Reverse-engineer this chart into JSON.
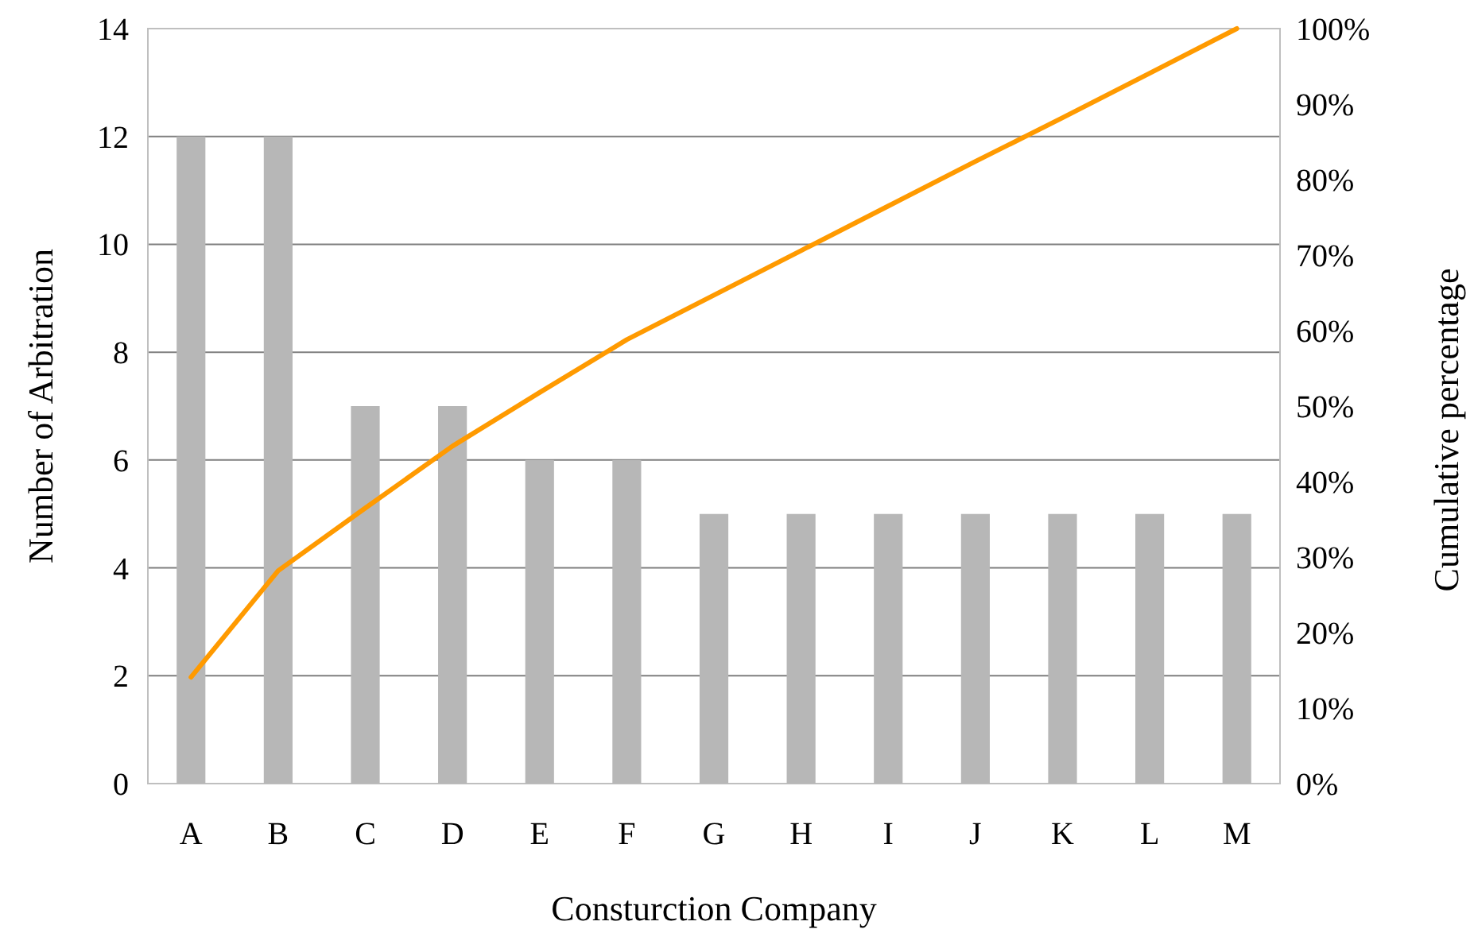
{
  "chart_data": {
    "type": "bar",
    "xlabel": "Consturction Company",
    "ylabel": "Number of Arbitration",
    "y2label": "Cumulative percentage",
    "categories": [
      "A",
      "B",
      "C",
      "D",
      "E",
      "F",
      "G",
      "H",
      "I",
      "J",
      "K",
      "L",
      "M"
    ],
    "series": [
      {
        "color": "#b7b7b7",
        "values": [
          12,
          12,
          7,
          7,
          6,
          6,
          5,
          5,
          5,
          5,
          5,
          5,
          5
        ]
      },
      {
        "type": "line",
        "axis": "y2",
        "color": "#ff9a00",
        "values": [
          14.1,
          28.2,
          36.5,
          44.7,
          51.8,
          58.8,
          64.7,
          70.6,
          76.5,
          82.4,
          88.2,
          94.1,
          100
        ]
      }
    ],
    "ylim": [
      0,
      14
    ],
    "yticks": [
      0,
      2,
      4,
      6,
      8,
      10,
      12,
      14
    ],
    "y2lim": [
      0,
      100
    ],
    "y2ticks": [
      {
        "value": 0,
        "label": "0%"
      },
      {
        "value": 10,
        "label": "10%"
      },
      {
        "value": 20,
        "label": "20%"
      },
      {
        "value": 30,
        "label": "30%"
      },
      {
        "value": 40,
        "label": "40%"
      },
      {
        "value": 50,
        "label": "50%"
      },
      {
        "value": 60,
        "label": "60%"
      },
      {
        "value": 70,
        "label": "70%"
      },
      {
        "value": 80,
        "label": "80%"
      },
      {
        "value": 90,
        "label": "90%"
      },
      {
        "value": 100,
        "label": "100%"
      }
    ],
    "grid": "y",
    "marker": "none",
    "line_style": "solid"
  }
}
